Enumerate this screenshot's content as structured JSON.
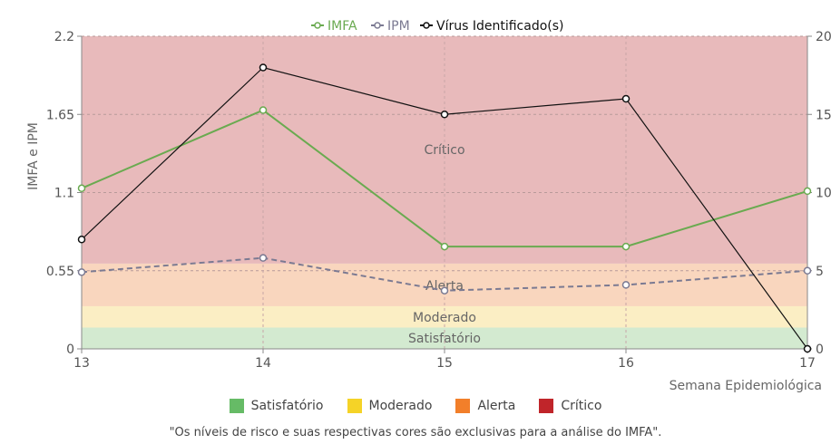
{
  "chart_data": {
    "type": "line",
    "x": [
      13,
      14,
      15,
      16,
      17
    ],
    "xlabel": "Semana Epidemiológica",
    "ylabel": "IMFA e IPM",
    "y_left_ticks": [
      "0",
      "0.55",
      "1.1",
      "1.65",
      "2.2"
    ],
    "y_left_range": [
      0,
      2.2
    ],
    "y_right_ticks": [
      "0",
      "5",
      "10",
      "15",
      "20"
    ],
    "y_right_range": [
      0,
      20
    ],
    "grid": true,
    "legend_position": "top",
    "series": [
      {
        "name": "IMFA",
        "axis": "left",
        "style": "solid",
        "color": "#6aaa50",
        "values": [
          1.13,
          1.68,
          0.72,
          0.72,
          1.11
        ]
      },
      {
        "name": "IPM",
        "axis": "left",
        "style": "dashed",
        "color": "#7b7a92",
        "values": [
          0.54,
          0.64,
          0.41,
          0.45,
          0.55
        ]
      },
      {
        "name": "Vírus Identificado(s)",
        "axis": "right",
        "style": "solid",
        "color": "#111111",
        "values": [
          7,
          18,
          15,
          16,
          0
        ]
      }
    ],
    "risk_bands": [
      {
        "label": "Satisfatório",
        "from": 0,
        "to": 0.15,
        "color": "#d3ead0"
      },
      {
        "label": "Moderado",
        "from": 0.15,
        "to": 0.3,
        "color": "#fbeec4"
      },
      {
        "label": "Alerta",
        "from": 0.3,
        "to": 0.6,
        "color": "#f9d6be"
      },
      {
        "label": "Crítico",
        "from": 0.6,
        "to": 2.2,
        "color": "#e8babb"
      }
    ]
  },
  "risk_legend": [
    {
      "label": "Satisfatório",
      "color": "#66bb66"
    },
    {
      "label": "Moderado",
      "color": "#f5d327"
    },
    {
      "label": "Alerta",
      "color": "#f27f2a"
    },
    {
      "label": "Crítico",
      "color": "#c0252a"
    }
  ],
  "footnote": "\"Os níveis de risco e suas respectivas cores são exclusivas para a análise do IMFA\"."
}
